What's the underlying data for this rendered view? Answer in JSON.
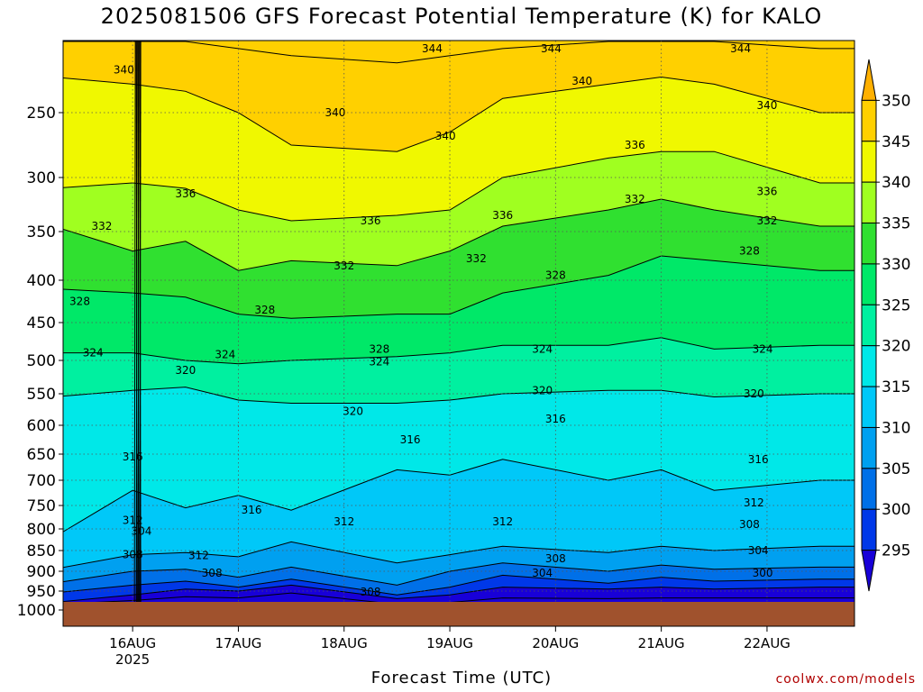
{
  "title": "2025081506 GFS Forecast Potential Temperature (K) for KALO",
  "credit": "coolwx.com/models",
  "chart_data": {
    "type": "heatmap",
    "title": "2025081506 GFS Forecast Potential Temperature (K) for KALO",
    "xlabel": "Forecast Time (UTC)",
    "ylabel": "",
    "x_ticks": [
      {
        "value": "2025-08-16 00Z",
        "label": "16AUG",
        "sublabel": "2025"
      },
      {
        "value": "2025-08-17 00Z",
        "label": "17AUG",
        "sublabel": ""
      },
      {
        "value": "2025-08-18 00Z",
        "label": "18AUG",
        "sublabel": ""
      },
      {
        "value": "2025-08-19 00Z",
        "label": "19AUG",
        "sublabel": ""
      },
      {
        "value": "2025-08-20 00Z",
        "label": "20AUG",
        "sublabel": ""
      },
      {
        "value": "2025-08-21 00Z",
        "label": "21AUG",
        "sublabel": ""
      },
      {
        "value": "2025-08-22 00Z",
        "label": "22AUG",
        "sublabel": ""
      }
    ],
    "xlim": [
      "2025-08-15 06Z",
      "2025-08-22 18Z"
    ],
    "y_ticks": [
      250,
      300,
      350,
      400,
      450,
      500,
      550,
      600,
      650,
      700,
      750,
      800,
      850,
      900,
      950,
      1000
    ],
    "ylim": [
      1000,
      200
    ],
    "y_axis_note": "pressure (hPa), decreasing upward",
    "grid": true,
    "colorbar": {
      "levels": [
        295,
        300,
        305,
        310,
        315,
        320,
        325,
        330,
        335,
        340,
        345,
        350
      ],
      "labels": [
        "295",
        "300",
        "305",
        "310",
        "315",
        "320",
        "325",
        "330",
        "335",
        "340",
        "345",
        "350"
      ],
      "colors": [
        "#1800d8",
        "#0038e8",
        "#0070e8",
        "#00a0f0",
        "#00c8f8",
        "#00e8e8",
        "#00f0a0",
        "#00e868",
        "#30e030",
        "#a0ff20",
        "#f0f800",
        "#ffd000",
        "#ffb000"
      ],
      "placement": "right",
      "arrows": "both ends"
    },
    "ground_color": "#a0522d",
    "series": [
      {
        "name": "295",
        "pressure": [
          985,
          975,
          965,
          968,
          955,
          985,
          980,
          968,
          970,
          968,
          968,
          968
        ]
      },
      {
        "name": "300",
        "pressure": [
          980,
          960,
          945,
          950,
          935,
          970,
          960,
          940,
          945,
          940,
          945,
          940
        ]
      },
      {
        "name": "304",
        "pressure": [
          955,
          935,
          925,
          940,
          920,
          960,
          940,
          910,
          930,
          915,
          925,
          920
        ]
      },
      {
        "name": "308",
        "pressure": [
          930,
          900,
          895,
          915,
          890,
          935,
          900,
          880,
          900,
          885,
          895,
          890
        ]
      },
      {
        "name": "312",
        "pressure": [
          895,
          860,
          855,
          865,
          830,
          880,
          860,
          840,
          855,
          840,
          850,
          840
        ]
      },
      {
        "name": "316",
        "pressure": [
          820,
          720,
          755,
          730,
          760,
          680,
          690,
          660,
          700,
          680,
          720,
          700
        ]
      },
      {
        "name": "320",
        "pressure": [
          555,
          545,
          540,
          560,
          565,
          565,
          560,
          550,
          545,
          545,
          555,
          550
        ]
      },
      {
        "name": "324",
        "pressure": [
          490,
          490,
          500,
          505,
          500,
          495,
          490,
          480,
          480,
          470,
          485,
          480
        ]
      },
      {
        "name": "328",
        "pressure": [
          410,
          415,
          420,
          440,
          445,
          440,
          440,
          415,
          395,
          375,
          380,
          390
        ]
      },
      {
        "name": "332",
        "pressure": [
          345,
          370,
          360,
          390,
          380,
          385,
          370,
          345,
          330,
          320,
          330,
          345
        ]
      },
      {
        "name": "336",
        "pressure": [
          310,
          305,
          310,
          330,
          340,
          335,
          330,
          300,
          285,
          280,
          280,
          305
        ]
      },
      {
        "name": "340",
        "pressure": [
          225,
          230,
          235,
          250,
          275,
          280,
          265,
          240,
          230,
          225,
          230,
          250
        ]
      },
      {
        "name": "344",
        "pressure": [
          200,
          200,
          200,
          205,
          210,
          215,
          210,
          205,
          200,
          200,
          200,
          205
        ]
      }
    ],
    "series_x": [
      "2025-08-15 06Z",
      "2025-08-16 00Z",
      "2025-08-16 12Z",
      "2025-08-17 00Z",
      "2025-08-17 12Z",
      "2025-08-18 12Z",
      "2025-08-19 00Z",
      "2025-08-19 12Z",
      "2025-08-20 12Z",
      "2025-08-21 00Z",
      "2025-08-21 12Z",
      "2025-08-22 12Z"
    ],
    "contour_labels": [
      {
        "text": "340",
        "x": "2025-08-15 22Z",
        "p": 220
      },
      {
        "text": "344",
        "x": "2025-08-18 20Z",
        "p": 205
      },
      {
        "text": "344",
        "x": "2025-08-19 23Z",
        "p": 205
      },
      {
        "text": "344",
        "x": "2025-08-21 18Z",
        "p": 205
      },
      {
        "text": "340",
        "x": "2025-08-17 22Z",
        "p": 250
      },
      {
        "text": "340",
        "x": "2025-08-18 23Z",
        "p": 268
      },
      {
        "text": "340",
        "x": "2025-08-20 06Z",
        "p": 228
      },
      {
        "text": "340",
        "x": "2025-08-22 00Z",
        "p": 245
      },
      {
        "text": "336",
        "x": "2025-08-20 18Z",
        "p": 275
      },
      {
        "text": "336",
        "x": "2025-08-16 12Z",
        "p": 315
      },
      {
        "text": "336",
        "x": "2025-08-18 06Z",
        "p": 340
      },
      {
        "text": "336",
        "x": "2025-08-19 12Z",
        "p": 335
      },
      {
        "text": "336",
        "x": "2025-08-22 00Z",
        "p": 313
      },
      {
        "text": "332",
        "x": "2025-08-15 17Z",
        "p": 345
      },
      {
        "text": "332",
        "x": "2025-08-18 00Z",
        "p": 385
      },
      {
        "text": "332",
        "x": "2025-08-19 06Z",
        "p": 378
      },
      {
        "text": "332",
        "x": "2025-08-20 18Z",
        "p": 320
      },
      {
        "text": "332",
        "x": "2025-08-22 00Z",
        "p": 340
      },
      {
        "text": "328",
        "x": "2025-08-15 12Z",
        "p": 425
      },
      {
        "text": "328",
        "x": "2025-08-17 06Z",
        "p": 435
      },
      {
        "text": "328",
        "x": "2025-08-18 08Z",
        "p": 485
      },
      {
        "text": "328",
        "x": "2025-08-20 00Z",
        "p": 395
      },
      {
        "text": "328",
        "x": "2025-08-21 20Z",
        "p": 370
      },
      {
        "text": "324",
        "x": "2025-08-15 15Z",
        "p": 490
      },
      {
        "text": "324",
        "x": "2025-08-16 21Z",
        "p": 492
      },
      {
        "text": "324",
        "x": "2025-08-18 08Z",
        "p": 502
      },
      {
        "text": "324",
        "x": "2025-08-19 21Z",
        "p": 485
      },
      {
        "text": "324",
        "x": "2025-08-21 23Z",
        "p": 485
      },
      {
        "text": "320",
        "x": "2025-08-15 08Z",
        "p": 540
      },
      {
        "text": "320",
        "x": "2025-08-16 12Z",
        "p": 515
      },
      {
        "text": "320",
        "x": "2025-08-18 02Z",
        "p": 578
      },
      {
        "text": "320",
        "x": "2025-08-19 21Z",
        "p": 545
      },
      {
        "text": "320",
        "x": "2025-08-21 21Z",
        "p": 550
      },
      {
        "text": "316",
        "x": "2025-08-20 00Z",
        "p": 590
      },
      {
        "text": "316",
        "x": "2025-08-18 15Z",
        "p": 625
      },
      {
        "text": "316",
        "x": "2025-08-16 00Z",
        "p": 655
      },
      {
        "text": "316",
        "x": "2025-08-17 03Z",
        "p": 760
      },
      {
        "text": "316",
        "x": "2025-08-21 22Z",
        "p": 660
      },
      {
        "text": "312",
        "x": "2025-08-16 00Z",
        "p": 782
      },
      {
        "text": "312",
        "x": "2025-08-18 00Z",
        "p": 785
      },
      {
        "text": "312",
        "x": "2025-08-19 12Z",
        "p": 785
      },
      {
        "text": "312",
        "x": "2025-08-21 21Z",
        "p": 745
      },
      {
        "text": "312",
        "x": "2025-08-16 15Z",
        "p": 862
      },
      {
        "text": "308",
        "x": "2025-08-21 20Z",
        "p": 790
      },
      {
        "text": "308",
        "x": "2025-08-16 00Z",
        "p": 860
      },
      {
        "text": "308",
        "x": "2025-08-20 00Z",
        "p": 870
      },
      {
        "text": "308",
        "x": "2025-08-16 18Z",
        "p": 905
      },
      {
        "text": "308",
        "x": "2025-08-18 06Z",
        "p": 952
      },
      {
        "text": "304",
        "x": "2025-08-16 02Z",
        "p": 805
      },
      {
        "text": "304",
        "x": "2025-08-21 22Z",
        "p": 850
      },
      {
        "text": "304",
        "x": "2025-08-19 21Z",
        "p": 905
      },
      {
        "text": "300",
        "x": "2025-08-21 23Z",
        "p": 905
      }
    ]
  }
}
